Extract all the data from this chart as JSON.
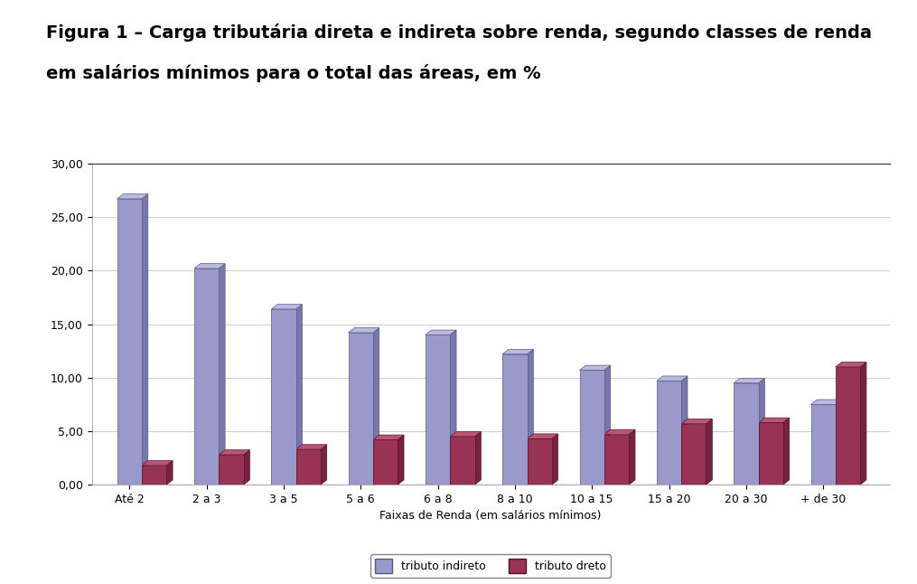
{
  "title_line1": "Figura 1 – Carga tributária direta e indireta sobre renda, segundo classes de renda",
  "title_line2": "em salários mínimos para o total das áreas, em %",
  "categories": [
    "Até 2",
    "2 a 3",
    "3 a 5",
    "5 a 6",
    "6 a 8",
    "8 a 10",
    "10 a 15",
    "15 a 20",
    "20 a 30",
    "+ de 30"
  ],
  "indireto": [
    26.7,
    20.2,
    16.4,
    14.2,
    14.0,
    12.2,
    10.7,
    9.7,
    9.5,
    7.5
  ],
  "direto": [
    1.8,
    2.8,
    3.3,
    4.2,
    4.5,
    4.3,
    4.7,
    5.7,
    5.8,
    11.0
  ],
  "color_indireto": "#9999cc",
  "color_indireto_right": "#7777aa",
  "color_indireto_top": "#bbbbdd",
  "color_direto": "#993355",
  "color_direto_right": "#772244",
  "color_direto_top": "#bb5577",
  "xlabel": "Faixas de Renda (em salários mínimos)",
  "ylim": [
    0,
    30
  ],
  "ytick_values": [
    0.0,
    5.0,
    10.0,
    15.0,
    20.0,
    25.0,
    30.0
  ],
  "legend_indireto": "tributo indireto",
  "legend_direto": "tributo dreto",
  "background_color": "#ffffff",
  "plot_bg_color": "#ffffff",
  "grid_color": "#cccccc",
  "floor_color": "#aaaaaa",
  "title_fontsize": 14,
  "tick_fontsize": 9,
  "xlabel_fontsize": 9,
  "legend_fontsize": 9
}
